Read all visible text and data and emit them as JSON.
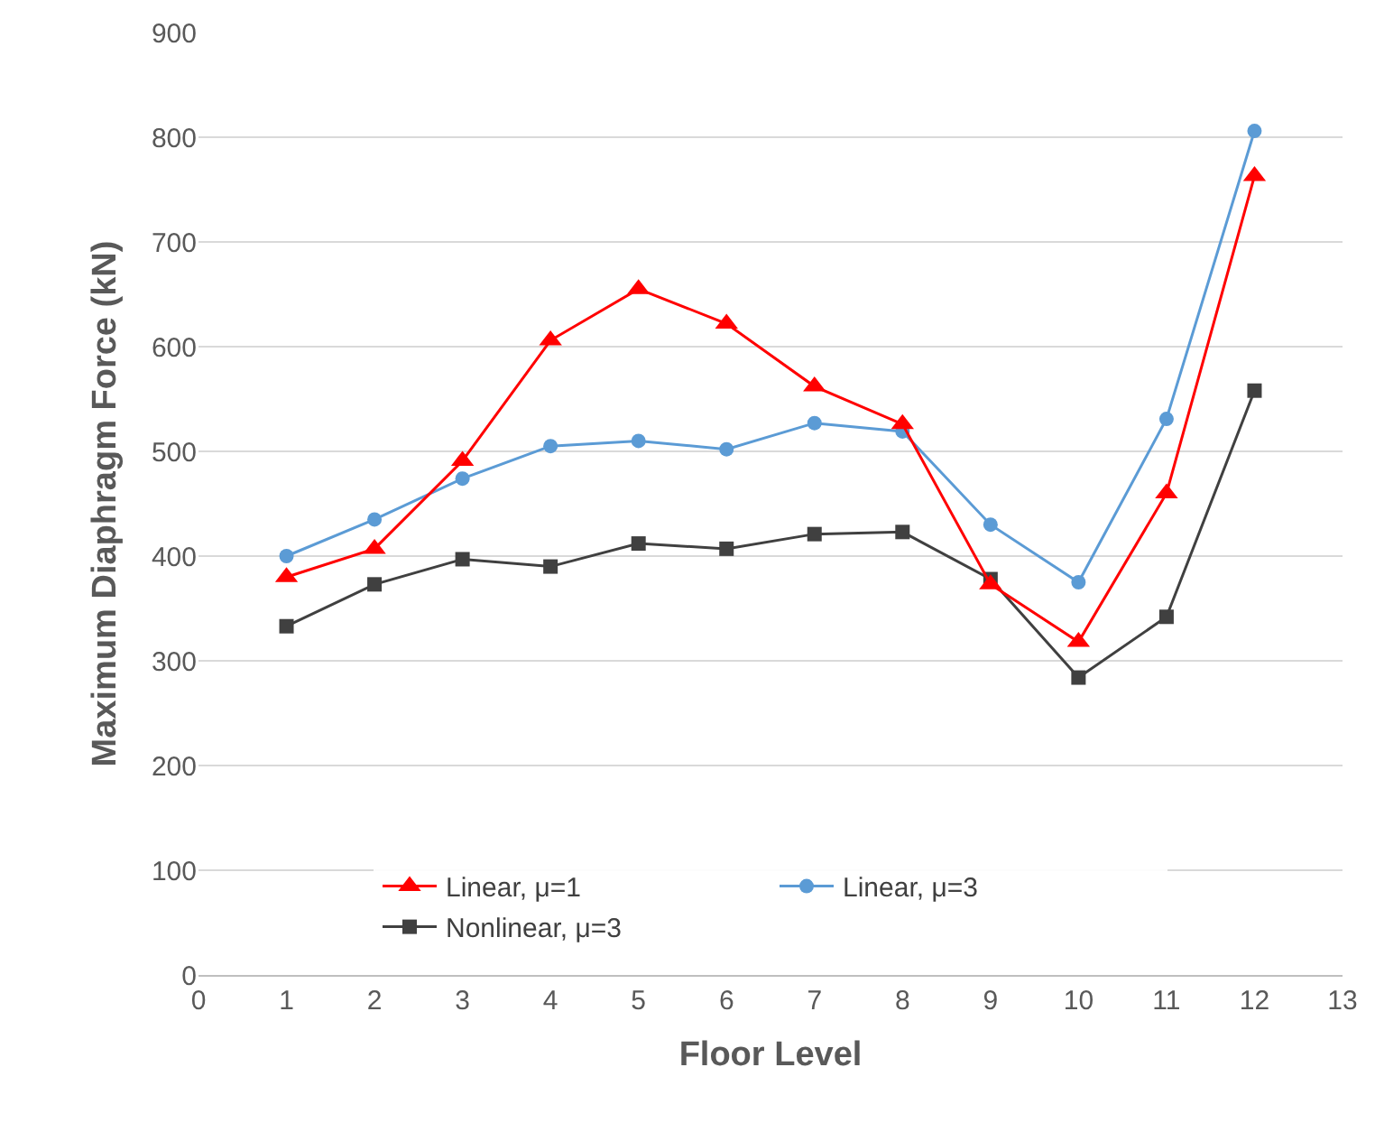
{
  "chart_data": {
    "type": "line",
    "xlabel": "Floor Level",
    "ylabel": "Maximum Diaphragm Force (kN)",
    "x": [
      1,
      2,
      3,
      4,
      5,
      6,
      7,
      8,
      9,
      10,
      11,
      12
    ],
    "xlim": [
      0,
      13
    ],
    "xticks": [
      0,
      1,
      2,
      3,
      4,
      5,
      6,
      7,
      8,
      9,
      10,
      11,
      12,
      13
    ],
    "ylim": [
      0,
      900
    ],
    "yticks": [
      0,
      100,
      200,
      300,
      400,
      500,
      600,
      700,
      800,
      900
    ],
    "grid": "y",
    "legend": "bottom",
    "series": [
      {
        "name": "Linear, μ=1",
        "color": "#ff0000",
        "marker": "triangle",
        "values": [
          380,
          407,
          491,
          606,
          655,
          622,
          562,
          526,
          373,
          318,
          460,
          763
        ]
      },
      {
        "name": "Linear, μ=3",
        "color": "#5b9bd5",
        "marker": "circle",
        "values": [
          400,
          435,
          474,
          505,
          510,
          502,
          527,
          519,
          430,
          375,
          531,
          806
        ]
      },
      {
        "name": "Nonlinear, μ=3",
        "color": "#404040",
        "marker": "square",
        "values": [
          333,
          373,
          397,
          390,
          412,
          407,
          421,
          423,
          378,
          284,
          342,
          558
        ]
      }
    ]
  }
}
